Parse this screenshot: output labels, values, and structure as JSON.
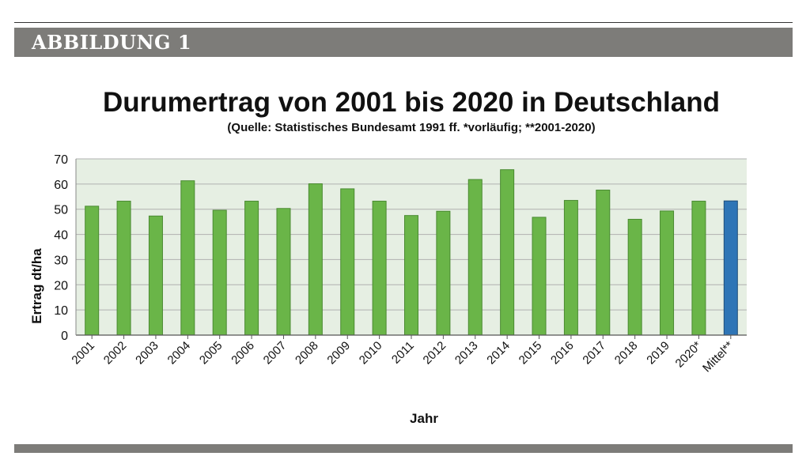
{
  "header": {
    "label": "ABBILDUNG 1"
  },
  "chart_data": {
    "type": "bar",
    "title": "Durumertrag von 2001 bis 2020 in Deutschland",
    "subtitle": "(Quelle: Statistisches Bundesamt 1991 ff. *vorläufig; **2001-2020)",
    "xlabel": "Jahr",
    "ylabel": "Ertrag dt/ha",
    "ylim": [
      0,
      70
    ],
    "yticks": [
      0,
      10,
      20,
      30,
      40,
      50,
      60,
      70
    ],
    "grid": true,
    "legend": "none",
    "categories": [
      "2001",
      "2002",
      "2003",
      "2004",
      "2005",
      "2006",
      "2007",
      "2008",
      "2009",
      "2010",
      "2011",
      "2012",
      "2013",
      "2014",
      "2015",
      "2016",
      "2017",
      "2018",
      "2019",
      "2020*",
      "Mittel**"
    ],
    "values": [
      51.2,
      53.2,
      47.3,
      61.3,
      49.6,
      53.2,
      50.3,
      60.1,
      58.1,
      53.2,
      47.5,
      49.2,
      61.8,
      65.7,
      46.8,
      53.5,
      57.6,
      46.0,
      49.3,
      53.2,
      53.3
    ],
    "colors": {
      "bar": "#6ab548",
      "bar_edge": "#4a8a31",
      "mean_bar": "#2e75b6",
      "mean_edge": "#1f4e79",
      "plot_bg": "#e6efe3",
      "grid": "#b0b0b0"
    }
  }
}
